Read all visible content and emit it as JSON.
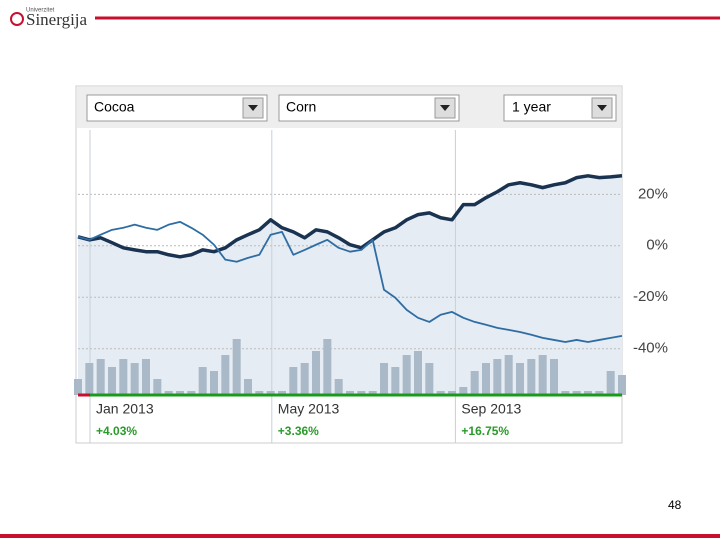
{
  "logo": "Sinergija",
  "logo_small": "Univerzitet",
  "page_number": "48",
  "chart_data": {
    "type": "line",
    "range": "1 year",
    "series": [
      {
        "name": "Cocoa",
        "color": "#1a3350",
        "values": [
          3.5,
          2.3,
          3.1,
          1.2,
          -0.8,
          -1.6,
          -2.3,
          -2.3,
          -3.5,
          -4.3,
          -3.5,
          -1.6,
          -2.3,
          -0.8,
          2.3,
          4.3,
          6.2,
          10.1,
          7.0,
          5.4,
          3.1,
          6.2,
          5.4,
          3.1,
          0.4,
          -0.8,
          2.3,
          5.4,
          7.0,
          10.1,
          12.1,
          12.8,
          10.9,
          10.1,
          16.0,
          16.0,
          18.7,
          21.0,
          23.7,
          24.5,
          23.7,
          22.6,
          23.7,
          24.5,
          26.5,
          27.2,
          26.5,
          26.8,
          27.2
        ]
      },
      {
        "name": "Corn",
        "color": "#2e6da4",
        "values": [
          3.5,
          2.3,
          4.3,
          6.2,
          7.0,
          8.2,
          7.0,
          6.2,
          8.2,
          9.3,
          7.0,
          4.3,
          0.4,
          -5.4,
          -6.2,
          -4.7,
          -3.5,
          4.3,
          5.4,
          -3.5,
          -1.6,
          0.4,
          2.3,
          -0.8,
          -2.3,
          -1.6,
          2.3,
          -17.1,
          -20.2,
          -24.9,
          -28.0,
          -29.6,
          -26.8,
          -25.7,
          -28.0,
          -29.6,
          -30.7,
          -31.9,
          -32.7,
          -33.5,
          -34.6,
          -35.8,
          -36.6,
          -37.4,
          -36.6,
          -37.4,
          -36.6,
          -35.8,
          -35.0
        ]
      }
    ],
    "volume": {
      "color": "#a9b9c8",
      "ylim": [
        0,
        100
      ],
      "values": [
        20,
        40,
        45,
        35,
        45,
        40,
        45,
        20,
        5,
        5,
        5,
        35,
        30,
        50,
        70,
        20,
        5,
        5,
        5,
        35,
        40,
        55,
        70,
        20,
        5,
        5,
        5,
        40,
        35,
        50,
        55,
        40,
        5,
        5,
        10,
        30,
        40,
        45,
        50,
        40,
        45,
        50,
        45,
        5,
        5,
        5,
        5,
        30,
        25
      ]
    },
    "xlim": [
      0,
      48
    ],
    "xticks": [
      {
        "value": 1.06,
        "label": "Jan 2013"
      },
      {
        "value": 17.1,
        "label": "May 2013"
      },
      {
        "value": 33.3,
        "label": "Sep 2013"
      }
    ],
    "period_changes": [
      "+4.03%",
      "+3.36%",
      "+16.75%"
    ],
    "ylim": [
      -58,
      45
    ],
    "yticks": [
      {
        "value": 20,
        "label": "20%"
      },
      {
        "value": 0,
        "label": "0%"
      },
      {
        "value": -20,
        "label": "-20%"
      },
      {
        "value": -40,
        "label": "-40%"
      }
    ],
    "grid": true
  }
}
